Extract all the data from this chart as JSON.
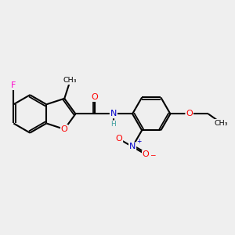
{
  "background_color": "#efefef",
  "atom_colors": {
    "C": "#000000",
    "H": "#40a0a0",
    "N": "#0000cc",
    "O": "#ff0000",
    "F": "#ff00cc"
  },
  "bond_color": "#000000",
  "bond_width": 1.5,
  "figsize": [
    3.0,
    3.0
  ],
  "dpi": 100,
  "scale": 1.0
}
